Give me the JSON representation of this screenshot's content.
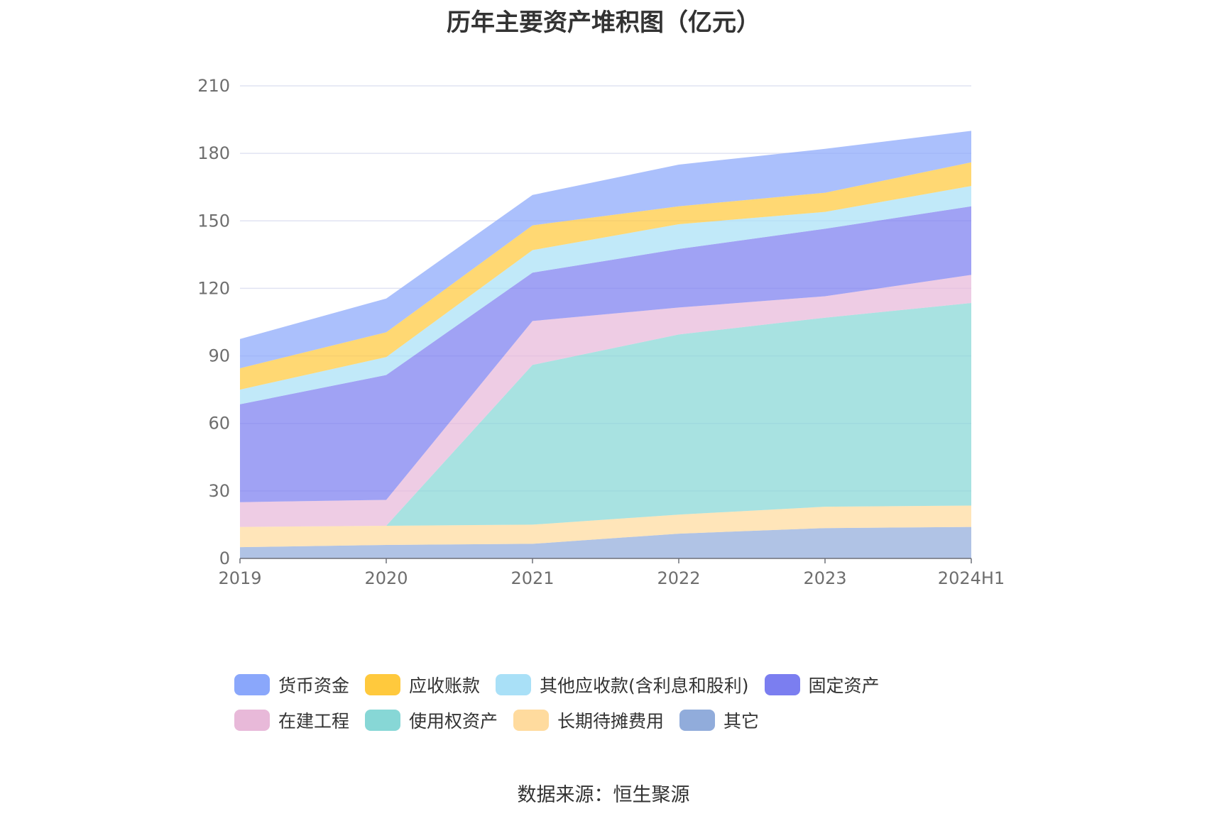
{
  "chart_data": {
    "type": "area",
    "stacked": true,
    "title": "历年主要资产堆积图（亿元）",
    "x": [
      "2019",
      "2020",
      "2021",
      "2022",
      "2023",
      "2024H1"
    ],
    "ylim": [
      0,
      210
    ],
    "yticks": [
      0,
      30,
      60,
      90,
      120,
      150,
      180,
      210
    ],
    "grid": true,
    "legend_position": "bottom",
    "series": [
      {
        "name": "其它",
        "color": "#91acdb",
        "values": [
          5,
          6,
          6.5,
          11,
          13.5,
          14
        ]
      },
      {
        "name": "长期待摊费用",
        "color": "#ffdb9e",
        "values": [
          9,
          8.5,
          8.5,
          8.5,
          9.5,
          9.5
        ]
      },
      {
        "name": "使用权资产",
        "color": "#87d7d6",
        "values": [
          0,
          0,
          71,
          80,
          84,
          90
        ]
      },
      {
        "name": "在建工程",
        "color": "#e8b9d9",
        "values": [
          11,
          11.5,
          19.5,
          12,
          9.5,
          12.5
        ]
      },
      {
        "name": "固定资产",
        "color": "#7b7ef0",
        "values": [
          43.5,
          55.5,
          21.5,
          26,
          30,
          30.5
        ]
      },
      {
        "name": "其他应收款(含利息和股利)",
        "color": "#a9e0f7",
        "values": [
          6.5,
          8,
          10,
          11,
          7.5,
          9
        ]
      },
      {
        "name": "应收账款",
        "color": "#ffc93d",
        "values": [
          9.5,
          11,
          11,
          8,
          8.5,
          10.5
        ]
      },
      {
        "name": "货币资金",
        "color": "#8aa7fb",
        "values": [
          13,
          15,
          13.5,
          18.5,
          19.5,
          14
        ]
      }
    ]
  },
  "legend": [
    {
      "label": "货币资金",
      "color": "#8aa7fb"
    },
    {
      "label": "应收账款",
      "color": "#ffc93d"
    },
    {
      "label": "其他应收款(含利息和股利)",
      "color": "#a9e0f7"
    },
    {
      "label": "固定资产",
      "color": "#7b7ef0"
    },
    {
      "label": "在建工程",
      "color": "#e8b9d9"
    },
    {
      "label": "使用权资产",
      "color": "#87d7d6"
    },
    {
      "label": "长期待摊费用",
      "color": "#ffdb9e"
    },
    {
      "label": "其它",
      "color": "#91acdb"
    }
  ],
  "source": "数据来源：恒生聚源"
}
